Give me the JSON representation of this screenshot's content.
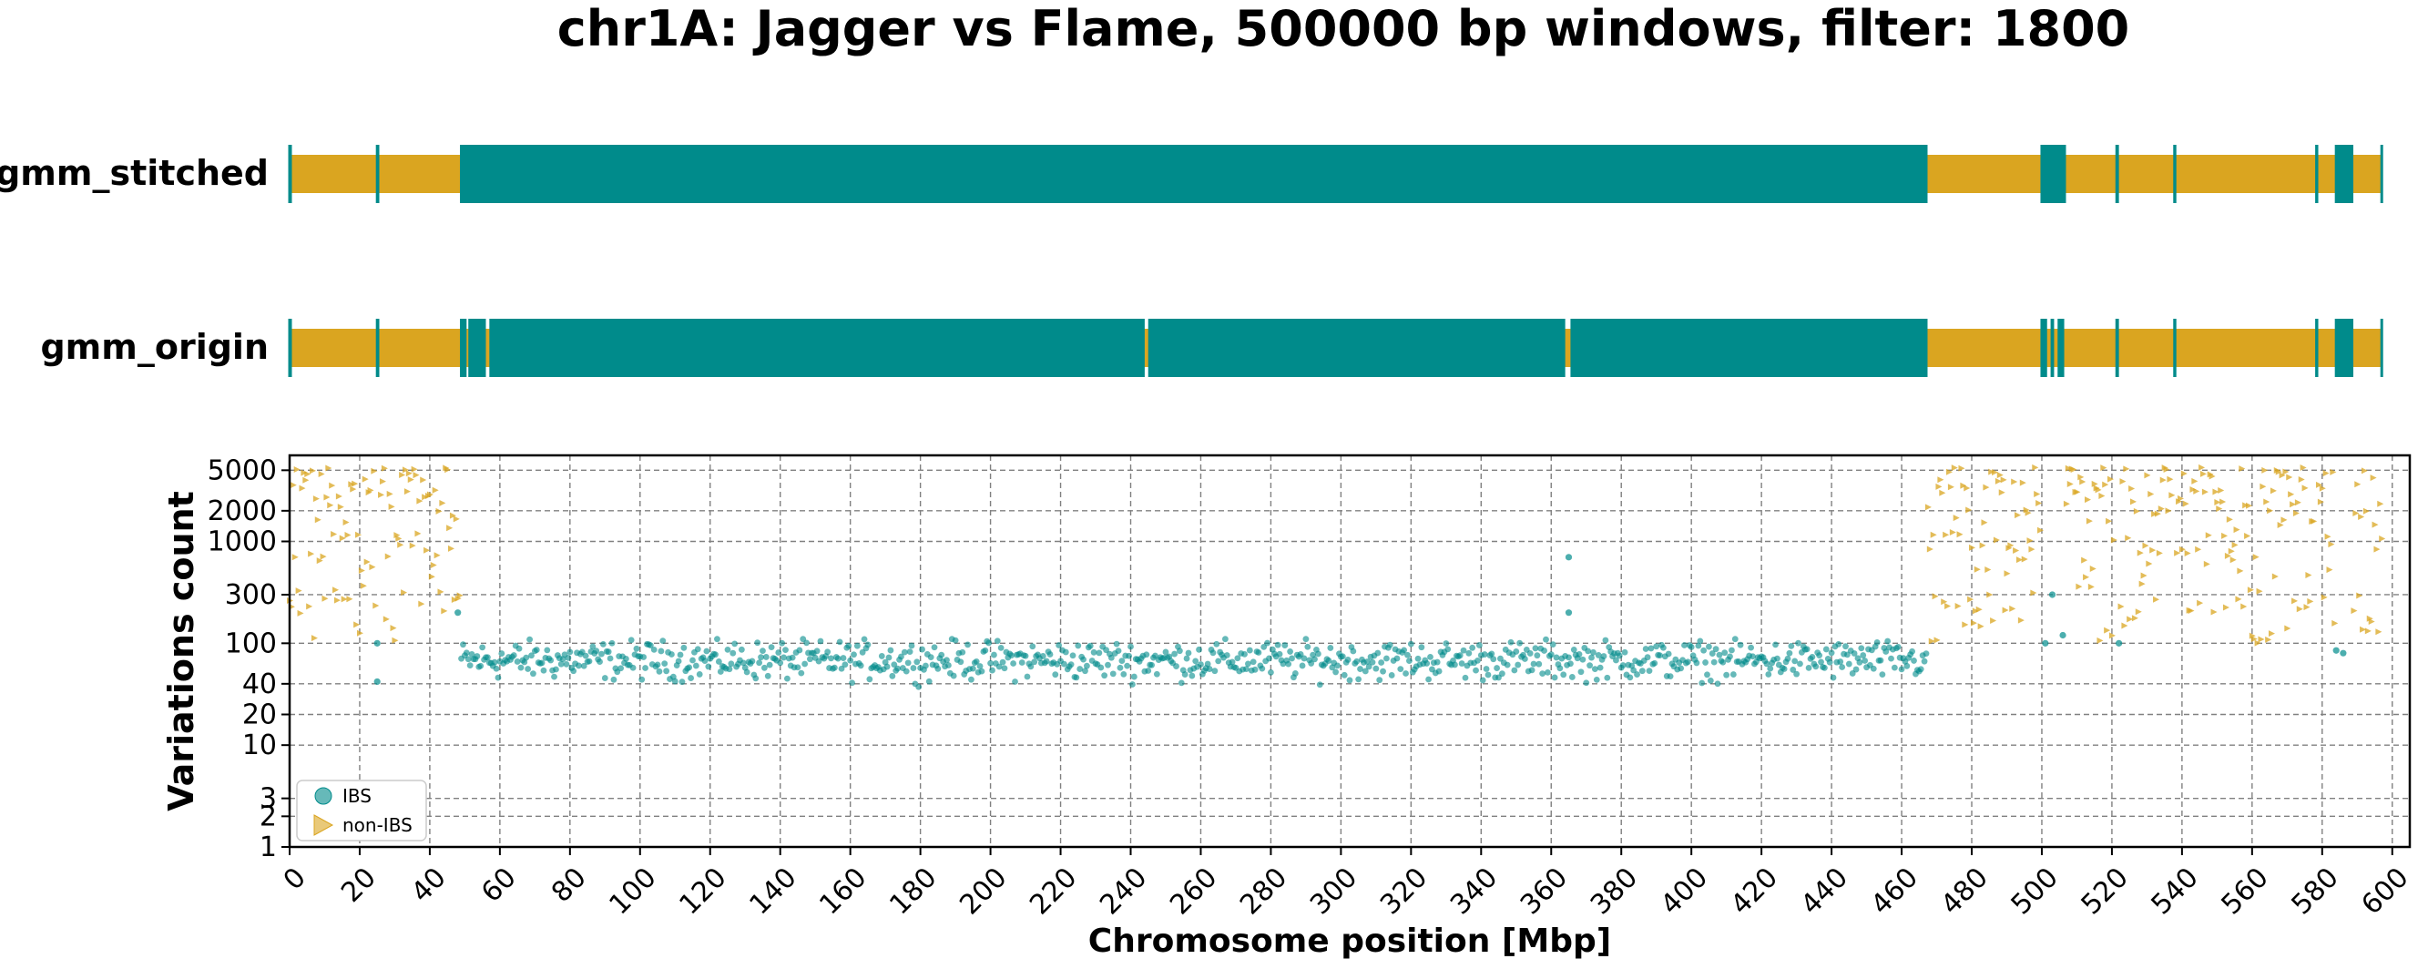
{
  "title": "chr1A: Jagger vs Flame, 500000 bp windows, filter: 1800",
  "colors": {
    "ibs": "#008b8b",
    "non_ibs": "#daa520"
  },
  "chart_data": [
    {
      "type": "track",
      "label": "gmm_stitched",
      "x_domain": [
        0,
        597
      ],
      "ibs_segments": [
        [
          0,
          0.6
        ],
        [
          24.8,
          25.6
        ],
        [
          49,
          467
        ],
        [
          500,
          506.5
        ],
        [
          521,
          522
        ],
        [
          537.5,
          538.3
        ],
        [
          578,
          578.8
        ],
        [
          584,
          588.5
        ]
      ],
      "markers": [
        0,
        25,
        49,
        467,
        500,
        506.5,
        521.5,
        538,
        578.5,
        584,
        588.5,
        597
      ]
    },
    {
      "type": "track",
      "label": "gmm_origin",
      "x_domain": [
        0,
        597
      ],
      "ibs_segments": [
        [
          0,
          0.6
        ],
        [
          24.8,
          25.6
        ],
        [
          49,
          50.5
        ],
        [
          51,
          56
        ],
        [
          57,
          244
        ],
        [
          245,
          364
        ],
        [
          365.5,
          467
        ],
        [
          500,
          501.5
        ],
        [
          502.5,
          503.5
        ],
        [
          504.5,
          506
        ],
        [
          521,
          522
        ],
        [
          537.5,
          538.3
        ],
        [
          578,
          578.8
        ],
        [
          584,
          588.5
        ]
      ],
      "markers": [
        0,
        25,
        49,
        467,
        500,
        506,
        521.5,
        538,
        578.5,
        584,
        588.5,
        597
      ]
    },
    {
      "type": "scatter",
      "xlabel": "Chromosome position [Mbp]",
      "ylabel": "Variations count",
      "yscale": "log",
      "xlim": [
        0,
        605
      ],
      "ylim": [
        1,
        7000
      ],
      "xticks": [
        0,
        20,
        40,
        60,
        80,
        100,
        120,
        140,
        160,
        180,
        200,
        220,
        240,
        260,
        280,
        300,
        320,
        340,
        360,
        380,
        400,
        420,
        440,
        460,
        480,
        500,
        520,
        540,
        560,
        580,
        600
      ],
      "yticks": [
        1,
        2,
        3,
        10,
        20,
        40,
        100,
        300,
        1000,
        2000,
        5000
      ],
      "grid": true,
      "legend_position": "bottom-left",
      "series": [
        {
          "name": "IBS",
          "marker": "circle",
          "generator": {
            "x_start": 49,
            "x_end": 467,
            "step": 0.5,
            "y_median": 68,
            "y_min": 30,
            "y_max": 110
          },
          "extra_points": [
            [
              25,
              100
            ],
            [
              25,
              42
            ],
            [
              48,
              200
            ],
            [
              365,
              700
            ],
            [
              365,
              200
            ],
            [
              501,
              100
            ],
            [
              503,
              300
            ],
            [
              506,
              120
            ],
            [
              522,
              100
            ],
            [
              584,
              85
            ],
            [
              586,
              80
            ]
          ]
        },
        {
          "name": "non-IBS",
          "marker": "triangle-right",
          "generator": {
            "ranges": [
              [
                0,
                24.5
              ],
              [
                26,
                48.5
              ],
              [
                467.5,
                499.5
              ],
              [
                507,
                520.5
              ],
              [
                522.5,
                537
              ],
              [
                538.5,
                577.5
              ],
              [
                579,
                583.5
              ],
              [
                589,
                597
              ]
            ],
            "step": 0.5,
            "y_min": 100,
            "y_max": 5500
          },
          "extra_points": []
        }
      ]
    }
  ]
}
